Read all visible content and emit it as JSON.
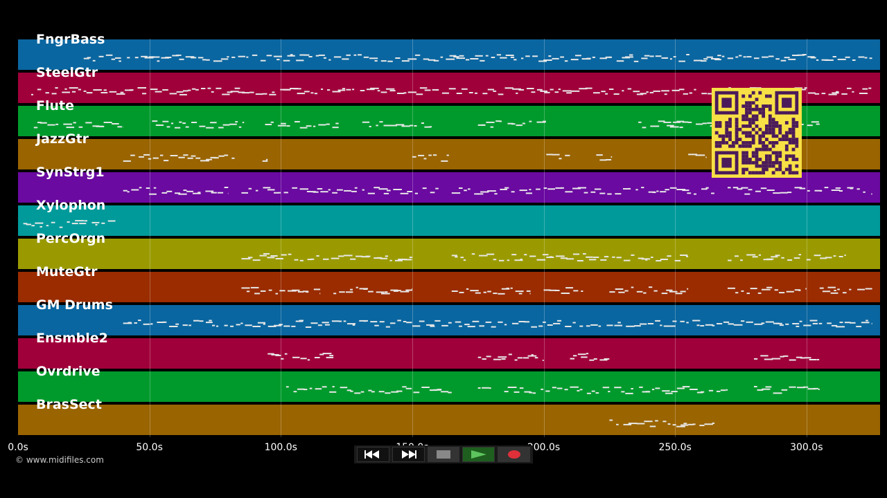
{
  "tracks": [
    {
      "name": "FngrBass",
      "color": "#0a66a0"
    },
    {
      "name": "SteelGtr",
      "color": "#a0003a"
    },
    {
      "name": "Flute",
      "color": "#009a2c"
    },
    {
      "name": "JazzGtr",
      "color": "#9a6400"
    },
    {
      "name": "SynStrg1",
      "color": "#6a0aa0"
    },
    {
      "name": "Xylophon",
      "color": "#009a9a"
    },
    {
      "name": "PercOrgn",
      "color": "#9a9a00"
    },
    {
      "name": "MuteGtr",
      "color": "#9a2c00"
    },
    {
      "name": "GM Drums",
      "color": "#0a66a0"
    },
    {
      "name": "Ensmble2",
      "color": "#a0003a"
    },
    {
      "name": "Ovrdrive",
      "color": "#009a2c"
    },
    {
      "name": "BrasSect",
      "color": "#9a6400"
    }
  ],
  "timeline": {
    "start_seconds": 0,
    "end_seconds": 328,
    "ticks": [
      "0.0s",
      "50.0s",
      "100.0s",
      "150.0s",
      "200.0s",
      "250.0s",
      "300.0s"
    ],
    "tick_values": [
      0,
      50,
      100,
      150,
      200,
      250,
      300
    ]
  },
  "note_segments": [
    {
      "track": 0,
      "spans": [
        [
          25,
          325
        ]
      ]
    },
    {
      "track": 1,
      "spans": [
        [
          5,
          325
        ]
      ]
    },
    {
      "track": 2,
      "spans": [
        [
          6,
          40
        ],
        [
          51,
          86
        ],
        [
          94,
          122
        ],
        [
          131,
          158
        ],
        [
          175,
          201
        ],
        [
          236,
          305
        ]
      ]
    },
    {
      "track": 3,
      "spans": [
        [
          40,
          84
        ],
        [
          93,
          95
        ],
        [
          150,
          164
        ],
        [
          201,
          210
        ],
        [
          220,
          226
        ],
        [
          255,
          262
        ]
      ]
    },
    {
      "track": 4,
      "spans": [
        [
          40,
          80
        ],
        [
          85,
          160
        ],
        [
          165,
          265
        ],
        [
          270,
          325
        ]
      ]
    },
    {
      "track": 5,
      "spans": [
        [
          2,
          37
        ]
      ]
    },
    {
      "track": 6,
      "spans": [
        [
          85,
          150
        ],
        [
          165,
          255
        ],
        [
          270,
          315
        ]
      ]
    },
    {
      "track": 7,
      "spans": [
        [
          85,
          115
        ],
        [
          120,
          150
        ],
        [
          165,
          195
        ],
        [
          200,
          215
        ],
        [
          225,
          255
        ],
        [
          270,
          300
        ],
        [
          305,
          325
        ]
      ]
    },
    {
      "track": 8,
      "spans": [
        [
          40,
          325
        ]
      ]
    },
    {
      "track": 9,
      "spans": [
        [
          95,
          120
        ],
        [
          175,
          200
        ],
        [
          210,
          225
        ],
        [
          280,
          305
        ]
      ]
    },
    {
      "track": 10,
      "spans": [
        [
          102,
          165
        ],
        [
          175,
          180
        ],
        [
          185,
          270
        ],
        [
          280,
          305
        ]
      ]
    },
    {
      "track": 11,
      "spans": [
        [
          225,
          255
        ],
        [
          255,
          265
        ]
      ]
    }
  ],
  "copyright": "© www.midifiles.com",
  "transport": [
    {
      "name": "rewind",
      "icon": "rewind-icon"
    },
    {
      "name": "fast-forward",
      "icon": "fast-forward-icon"
    },
    {
      "name": "stop",
      "icon": "stop-icon"
    },
    {
      "name": "play",
      "icon": "play-icon"
    },
    {
      "name": "record",
      "icon": "record-icon"
    }
  ],
  "colors": {
    "note": "#e8e8e8",
    "qr_bg": "#f7e045",
    "qr_fg": "#4a1a5a"
  }
}
